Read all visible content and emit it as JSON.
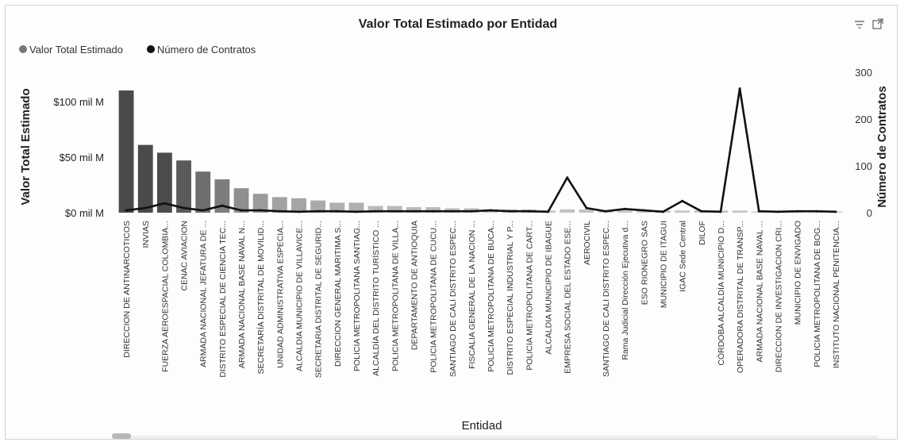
{
  "chart_data": {
    "type": "bar",
    "title": "Valor Total Estimado por Entidad",
    "xlabel": "Entidad",
    "ylabel": "Valor Total Estimado",
    "y2label": "Número de Contratos",
    "legend_placement": "top-left",
    "grid": false,
    "ylim": [
      0,
      115
    ],
    "y_ticks": [
      {
        "value": 0,
        "label": "$0 mil M"
      },
      {
        "value": 50,
        "label": "$50 mil M"
      },
      {
        "value": 100,
        "label": "$100 mil M"
      }
    ],
    "y2lim": [
      0,
      300
    ],
    "y2_ticks": [
      {
        "value": 0,
        "label": "0"
      },
      {
        "value": 100,
        "label": "100"
      },
      {
        "value": 200,
        "label": "200"
      },
      {
        "value": 300,
        "label": "300"
      }
    ],
    "categories": [
      "DIRECCION DE ANTINARCOTICOS",
      "INVIAS",
      "FUERZA AEROESPACIAL COLOMBIA...",
      "CENAC AVIACION",
      "ARMADA NACIONAL JEFATURA DE ...",
      "DISTRITO ESPECIAL DE CIENCIA TEC...",
      "ARMADA NACIONAL BASE NAVAL N...",
      "SECRETARÍA DISTRITAL DE MOVILID...",
      "UNIDAD ADMINISTRATIVA ESPECIA...",
      "ALCALDIA MUNICIPIO DE VILLAVICE...",
      "SECRETARIA DISTRITAL DE SEGURID...",
      "DIRECCION GENERAL MARITIMA S...",
      "POLICIA METROPOLITANA SANTIAG...",
      "ALCALDÍA DEL DISTRITO TURÍSTICO ...",
      "POLICIA METROPOLITANA DE VILLA...",
      "DEPARTAMENTO DE ANTIOQUIA",
      "POLICIA METROPOLITANA DE CUCU...",
      "SANTIAGO DE CALI DISTRITO ESPEC...",
      "FISCALIA GENERAL DE LA NACION ...",
      "POLICIA METROPOLITANA DE BUCA...",
      "DISTRITO ESPECIAL INDUSTRIAL Y P...",
      "POLICIA METROPOLITANA DE CART...",
      "ALCALDIA MUNICIPIO DE IBAGUE",
      "EMPRESA SOCIAL DEL ESTADO ESE...",
      "AEROCIVIL",
      "SANTIAGO DE CALI DISTRITO ESPEC...",
      "Rama Judicial Dirección Ejecutiva d...",
      "ESO RIONEGRO SAS",
      "MUNICIPIO DE ITAGUI",
      "IGAC Sede Central",
      "DILOF",
      "CÓRDOBA ALCALDÍA MUNICIPIO D...",
      "OPERADORA DISTRITAL DE TRANSP...",
      "ARMADA NACIONAL BASE NAVAL ...",
      "DIRECCION DE INVESTIGACION CRI...",
      "MUNICIPIO DE ENVIGADO",
      "POLICIA METROPOLITANA DE BOG...",
      "INSTITUTO NACIONAL PENITENCIA..."
    ],
    "series": [
      {
        "name": "Valor Total Estimado",
        "type": "bar",
        "axis": "left",
        "values": [
          110,
          61,
          54,
          47,
          37,
          30,
          22,
          17,
          14,
          13,
          11,
          9,
          9,
          6,
          6,
          5,
          5,
          4,
          4,
          3,
          3,
          3,
          2,
          3,
          3,
          2,
          2,
          2,
          2,
          2,
          2,
          2,
          2,
          1,
          1,
          1,
          1,
          1
        ]
      },
      {
        "name": "Número de Contratos",
        "type": "line",
        "axis": "right",
        "values": [
          5,
          10,
          20,
          10,
          5,
          15,
          5,
          5,
          3,
          2,
          3,
          3,
          2,
          3,
          3,
          3,
          3,
          3,
          3,
          5,
          3,
          3,
          2,
          75,
          10,
          3,
          8,
          5,
          2,
          25,
          3,
          2,
          265,
          3,
          2,
          3,
          3,
          2
        ]
      }
    ]
  },
  "colors": {
    "bar_dark": "#4a4a4a",
    "bar_light": "#cfcfcf",
    "line": "#111111",
    "legend_bar": "#777777",
    "legend_line": "#111111"
  },
  "icons": {
    "filter": "filter-icon",
    "focus": "focus-mode-icon"
  }
}
